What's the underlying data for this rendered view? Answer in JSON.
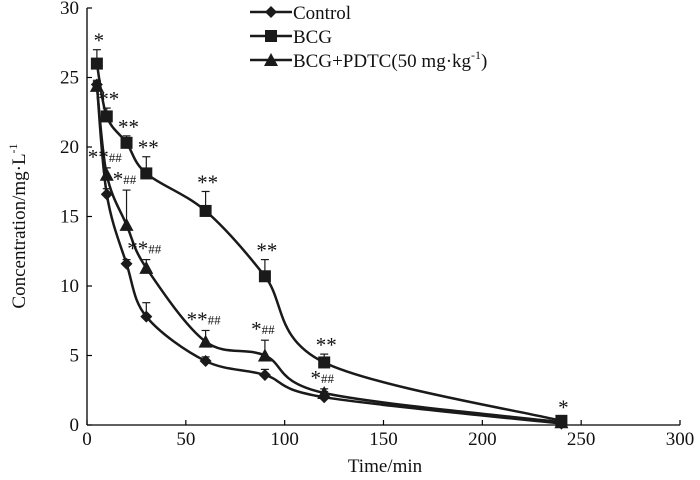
{
  "chart_data": {
    "type": "line",
    "title": "",
    "xlabel": "Time/min",
    "ylabel": "Concentration/mg·L",
    "ylabel_superscript": "-1",
    "xlim": [
      0,
      300
    ],
    "ylim": [
      0,
      30
    ],
    "x_ticks": [
      "0",
      "50",
      "100",
      "150",
      "200",
      "250",
      "300"
    ],
    "y_ticks": [
      "0",
      "5",
      "10",
      "15",
      "20",
      "25",
      "30"
    ],
    "x_tick_values": [
      0,
      50,
      100,
      150,
      200,
      250,
      300
    ],
    "y_tick_values": [
      0,
      5,
      10,
      15,
      20,
      25,
      30
    ],
    "grid": false,
    "legend_position": "top-center",
    "series": [
      {
        "name": "Control",
        "marker": "diamond",
        "x": [
          5,
          10,
          20,
          30,
          60,
          90,
          120,
          240
        ],
        "values": [
          24.5,
          16.6,
          11.6,
          7.8,
          4.6,
          3.6,
          2.0,
          0.1
        ],
        "errors": [
          0.3,
          0.4,
          0.3,
          1.0,
          0.3,
          0.4,
          0.4,
          0.1
        ],
        "annotations": [
          "",
          "",
          "",
          "",
          "",
          "",
          "",
          ""
        ]
      },
      {
        "name": "BCG",
        "marker": "square",
        "x": [
          5,
          10,
          20,
          30,
          60,
          90,
          120,
          240
        ],
        "values": [
          26.0,
          22.2,
          20.3,
          18.1,
          15.4,
          10.7,
          4.5,
          0.3
        ],
        "errors": [
          1.0,
          0.6,
          0.5,
          1.2,
          1.4,
          1.2,
          0.6,
          0.3
        ],
        "annotations": [
          "*",
          "**",
          "**",
          "**",
          "**",
          "**",
          "**",
          "*"
        ]
      },
      {
        "name": "BCG+PDTC(50 mg·kg",
        "name_superscript": "-1",
        "name_suffix": ")",
        "marker": "triangle",
        "x": [
          5,
          10,
          20,
          30,
          60,
          90,
          120,
          240
        ],
        "values": [
          24.4,
          18.0,
          14.4,
          11.3,
          6.0,
          5.0,
          2.3,
          0.2
        ],
        "errors": [
          0.3,
          0.5,
          2.5,
          0.6,
          0.8,
          1.1,
          0.3,
          0.1
        ],
        "annotations": [
          "",
          "**##",
          "*##",
          "**##",
          "**##",
          "*##",
          "*##",
          ""
        ]
      }
    ]
  }
}
